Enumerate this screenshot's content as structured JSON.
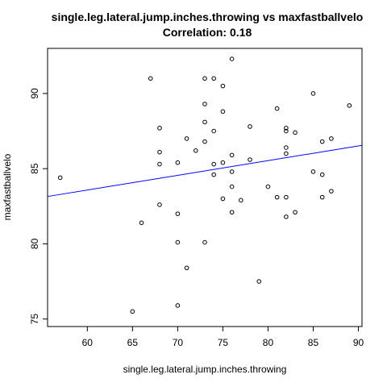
{
  "chart_data": {
    "type": "scatter",
    "title": "single.leg.lateral.jump.inches.throwing vs maxfastballvelo",
    "subtitle": "Correlation: 0.18",
    "xlabel": "single.leg.lateral.jump.inches.throwing",
    "ylabel": "maxfastballvelo",
    "xlim": [
      55.6,
      90.4
    ],
    "ylim": [
      74.5,
      93.0
    ],
    "xticks": [
      60,
      65,
      70,
      75,
      80,
      85,
      90
    ],
    "yticks": [
      75,
      80,
      85,
      90
    ],
    "grid": false,
    "points": [
      [
        57,
        84.4
      ],
      [
        65,
        75.5
      ],
      [
        66,
        81.4
      ],
      [
        67,
        91.0
      ],
      [
        68,
        87.7
      ],
      [
        68,
        86.1
      ],
      [
        68,
        85.3
      ],
      [
        68,
        82.6
      ],
      [
        70,
        85.4
      ],
      [
        70,
        82.0
      ],
      [
        70,
        80.1
      ],
      [
        70,
        75.9
      ],
      [
        71,
        87.0
      ],
      [
        71,
        78.4
      ],
      [
        72,
        86.2
      ],
      [
        73,
        91.0
      ],
      [
        73,
        89.3
      ],
      [
        73,
        88.1
      ],
      [
        73,
        86.8
      ],
      [
        73,
        80.1
      ],
      [
        74,
        91.0
      ],
      [
        74,
        87.5
      ],
      [
        74,
        85.3
      ],
      [
        74,
        84.6
      ],
      [
        75,
        90.5
      ],
      [
        75,
        88.8
      ],
      [
        75,
        85.4
      ],
      [
        75,
        83.0
      ],
      [
        76,
        92.3
      ],
      [
        76,
        85.9
      ],
      [
        76,
        84.8
      ],
      [
        76,
        83.8
      ],
      [
        76,
        82.1
      ],
      [
        77,
        82.9
      ],
      [
        78,
        87.8
      ],
      [
        78,
        85.6
      ],
      [
        79,
        77.5
      ],
      [
        80,
        83.8
      ],
      [
        81,
        89.0
      ],
      [
        81,
        83.1
      ],
      [
        82,
        87.7
      ],
      [
        82,
        87.5
      ],
      [
        82,
        86.4
      ],
      [
        82,
        86.0
      ],
      [
        82,
        83.1
      ],
      [
        82,
        81.8
      ],
      [
        83,
        87.4
      ],
      [
        83,
        82.1
      ],
      [
        85,
        90.0
      ],
      [
        85,
        84.8
      ],
      [
        86,
        86.8
      ],
      [
        86,
        84.6
      ],
      [
        86,
        83.1
      ],
      [
        87,
        87.0
      ],
      [
        87,
        83.5
      ],
      [
        89,
        89.2
      ]
    ],
    "trendline": {
      "color": "#0000ff",
      "x1": 55.6,
      "y1": 83.15,
      "x2": 90.4,
      "y2": 86.55
    }
  }
}
